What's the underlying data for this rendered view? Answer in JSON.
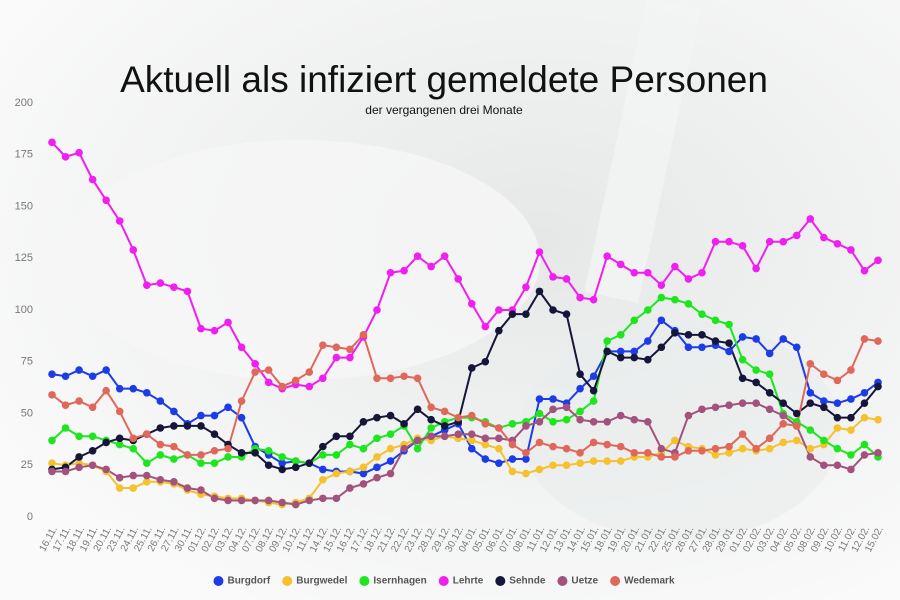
{
  "chart_data": {
    "type": "line",
    "title": "Aktuell als infiziert gemeldete Personen",
    "subtitle": "der vergangenen drei Monate",
    "categories": [
      "16.11.",
      "17.11.",
      "18.11.",
      "19.11.",
      "20.11.",
      "23.11.",
      "24.11.",
      "25.11.",
      "26.11.",
      "27.11.",
      "30.11.",
      "01.12.",
      "02.12.",
      "03.12.",
      "04.12.",
      "07.12.",
      "08.12.",
      "09.12.",
      "10.12.",
      "11.12.",
      "14.12.",
      "15.12.",
      "16.12.",
      "17.12.",
      "18.12.",
      "21.12.",
      "22.12.",
      "23.12.",
      "28.12.",
      "29.12.",
      "30.12.",
      "04.01.",
      "05.01.",
      "06.01.",
      "07.01.",
      "08.01.",
      "11.01.",
      "12.01.",
      "13.01.",
      "14.01.",
      "15.01.",
      "18.01.",
      "19.01.",
      "20.01.",
      "21.01.",
      "22.01.",
      "25.01.",
      "26.01.",
      "27.01.",
      "28.01.",
      "29.01.",
      "01.02.",
      "02.02.",
      "03.02.",
      "04.02.",
      "05.02.",
      "08.02.",
      "09.02.",
      "10.02.",
      "11.02.",
      "12.02.",
      "15.02."
    ],
    "series": [
      {
        "name": "Burgdorf",
        "color": "#1b3ce6",
        "values": [
          69,
          68,
          71,
          68,
          71,
          62,
          62,
          60,
          56,
          51,
          45,
          49,
          49,
          53,
          48,
          34,
          30,
          26,
          27,
          26,
          23,
          22,
          22,
          21,
          24,
          27,
          32,
          37,
          39,
          42,
          45,
          33,
          28,
          26,
          28,
          28,
          57,
          57,
          55,
          62,
          68,
          80,
          80,
          80,
          85,
          95,
          90,
          82,
          82,
          83,
          80,
          87,
          86,
          79,
          86,
          82,
          60,
          56,
          55,
          57,
          60,
          65
        ]
      },
      {
        "name": "Burgwedel",
        "color": "#f5c12e",
        "values": [
          26,
          25,
          26,
          25,
          22,
          14,
          14,
          17,
          17,
          16,
          13,
          11,
          10,
          9,
          9,
          8,
          7,
          6,
          7,
          9,
          18,
          21,
          22,
          24,
          29,
          33,
          35,
          38,
          37,
          39,
          38,
          37,
          35,
          33,
          22,
          21,
          23,
          25,
          25,
          26,
          27,
          27,
          27,
          29,
          29,
          31,
          37,
          34,
          33,
          30,
          31,
          33,
          32,
          33,
          36,
          37,
          33,
          35,
          43,
          42,
          48,
          47
        ]
      },
      {
        "name": "Isernhagen",
        "color": "#1ee61e",
        "values": [
          37,
          43,
          39,
          39,
          37,
          35,
          33,
          26,
          30,
          28,
          30,
          26,
          26,
          29,
          29,
          33,
          32,
          29,
          27,
          26,
          30,
          30,
          35,
          33,
          38,
          40,
          44,
          33,
          43,
          46,
          48,
          48,
          46,
          43,
          45,
          46,
          50,
          46,
          47,
          51,
          56,
          85,
          88,
          95,
          100,
          106,
          105,
          103,
          98,
          95,
          93,
          76,
          71,
          69,
          50,
          46,
          42,
          37,
          33,
          30,
          35,
          29
        ]
      },
      {
        "name": "Lehrte",
        "color": "#f01ef0",
        "values": [
          181,
          174,
          176,
          163,
          153,
          143,
          129,
          112,
          113,
          111,
          109,
          91,
          90,
          94,
          82,
          74,
          65,
          62,
          64,
          63,
          67,
          77,
          77,
          87,
          100,
          118,
          119,
          126,
          121,
          126,
          115,
          103,
          92,
          100,
          100,
          111,
          128,
          116,
          115,
          106,
          105,
          126,
          122,
          118,
          118,
          112,
          121,
          115,
          118,
          133,
          133,
          131,
          120,
          133,
          133,
          136,
          144,
          135,
          132,
          129,
          119,
          124
        ]
      },
      {
        "name": "Sehnde",
        "color": "#16163a",
        "values": [
          23,
          24,
          29,
          32,
          36,
          38,
          37,
          40,
          43,
          44,
          44,
          44,
          40,
          35,
          31,
          31,
          25,
          23,
          24,
          26,
          34,
          39,
          39,
          46,
          48,
          49,
          45,
          52,
          47,
          44,
          46,
          72,
          75,
          90,
          98,
          98,
          109,
          100,
          98,
          69,
          61,
          80,
          77,
          77,
          76,
          82,
          89,
          88,
          88,
          85,
          84,
          67,
          65,
          60,
          55,
          50,
          55,
          53,
          48,
          48,
          55,
          63
        ]
      },
      {
        "name": "Uetze",
        "color": "#a2527c",
        "values": [
          22,
          22,
          24,
          25,
          23,
          19,
          20,
          20,
          18,
          17,
          14,
          13,
          9,
          8,
          8,
          8,
          8,
          7,
          6,
          8,
          9,
          9,
          14,
          16,
          19,
          21,
          33,
          37,
          39,
          39,
          40,
          40,
          38,
          38,
          37,
          44,
          46,
          52,
          53,
          47,
          46,
          46,
          49,
          47,
          46,
          33,
          31,
          49,
          52,
          53,
          54,
          55,
          55,
          52,
          49,
          44,
          29,
          25,
          25,
          23,
          30,
          31
        ]
      },
      {
        "name": "Wedemark",
        "color": "#e0685b",
        "values": [
          59,
          54,
          56,
          53,
          61,
          51,
          38,
          40,
          35,
          34,
          30,
          30,
          32,
          33,
          56,
          70,
          71,
          63,
          66,
          70,
          83,
          82,
          81,
          88,
          67,
          67,
          68,
          67,
          53,
          51,
          48,
          49,
          45,
          43,
          35,
          31,
          36,
          34,
          33,
          31,
          36,
          35,
          34,
          31,
          31,
          29,
          29,
          32,
          32,
          33,
          34,
          40,
          33,
          38,
          45,
          44,
          74,
          69,
          66,
          71,
          86,
          85
        ]
      }
    ],
    "ylim": [
      0,
      200
    ],
    "yticks": [
      0,
      25,
      50,
      75,
      100,
      125,
      150,
      175,
      200
    ],
    "grid": false,
    "legend": "bottom"
  }
}
